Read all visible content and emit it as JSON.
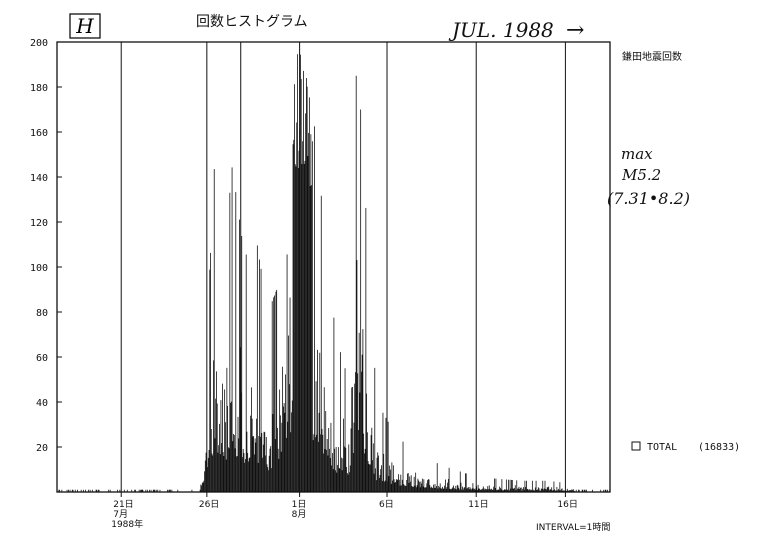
{
  "chart_data": {
    "type": "bar",
    "panel_mark": "H",
    "title": "回数ヒストグラム",
    "period": "JUL. 1988",
    "period_arrow": "→",
    "right_label": "鎌田地震回数",
    "xlabel": "",
    "ylabel": "",
    "ylim": [
      0,
      200
    ],
    "yticks": [
      20,
      40,
      60,
      80,
      100,
      120,
      140,
      160,
      180,
      200
    ],
    "ytick_labels": [
      "20",
      "40",
      "60",
      "80",
      "100",
      "120",
      "140",
      "160",
      "180",
      "200"
    ],
    "xlim_days": [
      0,
      31
    ],
    "x_ticks": [
      {
        "day": 3.6,
        "labels": [
          "21日",
          "7月",
          "1988年"
        ]
      },
      {
        "day": 8.4,
        "labels": [
          "26日"
        ]
      },
      {
        "day": 13.6,
        "labels": [
          "1日",
          "8月"
        ]
      },
      {
        "day": 18.5,
        "labels": [
          "6日"
        ]
      },
      {
        "day": 23.5,
        "labels": [
          "11日"
        ]
      },
      {
        "day": 28.5,
        "labels": [
          "16日"
        ]
      }
    ],
    "grid_days": [
      3.6,
      8.4,
      10.3,
      13.6,
      18.5,
      23.5,
      28.5
    ],
    "annotation": {
      "line1": "max",
      "line2": "M5.2",
      "line3": "(7.31•8.2)"
    },
    "legend": {
      "label": "TOTAL",
      "value": "(16833)",
      "placement": "right"
    },
    "interval_note": "INTERVAL=1時間",
    "series": [
      {
        "values_daily_peaks": [
          [
            0,
            1
          ],
          [
            2,
            0
          ],
          [
            4,
            1
          ],
          [
            6,
            0
          ],
          [
            7,
            1
          ],
          [
            8,
            2
          ],
          [
            8.8,
            145
          ],
          [
            9.3,
            100
          ],
          [
            9.8,
            145
          ],
          [
            10.5,
            104
          ],
          [
            11.1,
            115
          ],
          [
            11.8,
            80
          ],
          [
            12.3,
            90
          ],
          [
            12.8,
            200
          ],
          [
            13.5,
            200
          ],
          [
            14.0,
            200
          ],
          [
            14.5,
            155
          ],
          [
            15.0,
            115
          ],
          [
            15.6,
            70
          ],
          [
            16.3,
            50
          ],
          [
            16.8,
            200
          ],
          [
            17.4,
            110
          ],
          [
            17.9,
            40
          ],
          [
            19.0,
            25
          ],
          [
            20.0,
            18
          ],
          [
            21.5,
            12
          ],
          [
            23.0,
            8
          ],
          [
            24.5,
            6
          ],
          [
            26.0,
            5
          ],
          [
            27.5,
            5
          ],
          [
            28.5,
            4
          ],
          [
            29.5,
            2
          ]
        ]
      }
    ]
  }
}
